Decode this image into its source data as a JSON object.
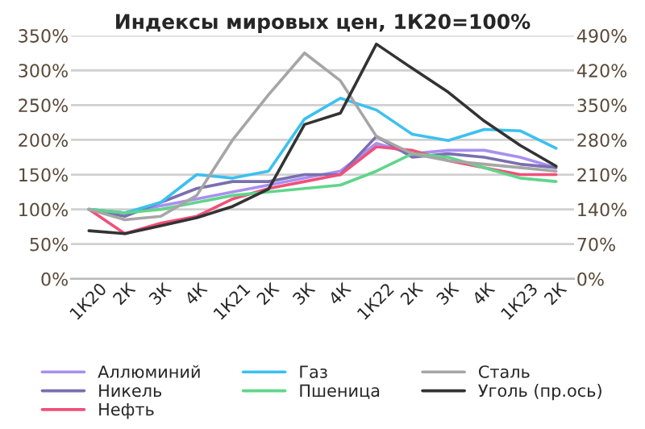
{
  "chart_data": {
    "type": "line",
    "title": "Индексы мировых цен, 1К20=100%",
    "categories": [
      "1К20",
      "2К",
      "3К",
      "4К",
      "1К21",
      "2К",
      "3К",
      "4К",
      "1К22",
      "2К",
      "3К",
      "4К",
      "1К23",
      "2К"
    ],
    "series": [
      {
        "name": "Аллюминий",
        "color": "#a98ff0",
        "values": [
          100,
          95,
          105,
          115,
          125,
          135,
          145,
          155,
          195,
          180,
          185,
          185,
          175,
          160
        ]
      },
      {
        "name": "Никель",
        "color": "#7a6fb0",
        "values": [
          100,
          90,
          110,
          130,
          140,
          140,
          150,
          150,
          205,
          175,
          180,
          175,
          165,
          160
        ]
      },
      {
        "name": "Нефть",
        "color": "#f0507a",
        "values": [
          100,
          65,
          80,
          90,
          115,
          130,
          140,
          150,
          190,
          185,
          170,
          160,
          150,
          150
        ]
      },
      {
        "name": "Газ",
        "color": "#3cc0f0",
        "values": [
          100,
          95,
          110,
          150,
          145,
          155,
          230,
          260,
          243,
          208,
          199,
          215,
          213,
          188
        ]
      },
      {
        "name": "Пшеница",
        "color": "#5fd68a",
        "values": [
          100,
          95,
          100,
          110,
          120,
          125,
          130,
          135,
          155,
          180,
          175,
          160,
          145,
          140
        ]
      },
      {
        "name": "Сталь",
        "color": "#a6a6a6",
        "values": [
          100,
          85,
          90,
          120,
          200,
          265,
          325,
          285,
          205,
          180,
          170,
          165,
          160,
          155
        ]
      },
      {
        "name": "Уголь (пр.ось)",
        "color": "#333333",
        "axis": "y2",
        "values": [
          97,
          91,
          107,
          123,
          146,
          181,
          311,
          334,
          473,
          424,
          376,
          318,
          269,
          227
        ]
      }
    ],
    "ylim": [
      0,
      350
    ],
    "yticks": [
      {
        "value": 0,
        "label": "0%"
      },
      {
        "value": 50,
        "label": "50%"
      },
      {
        "value": 100,
        "label": "100%"
      },
      {
        "value": 150,
        "label": "150%"
      },
      {
        "value": 200,
        "label": "200%"
      },
      {
        "value": 250,
        "label": "250%"
      },
      {
        "value": 300,
        "label": "300%"
      },
      {
        "value": 350,
        "label": "350%"
      }
    ],
    "y2lim": [
      0,
      490
    ],
    "y2ticks": [
      {
        "value": 0,
        "label": "0%"
      },
      {
        "value": 70,
        "label": "70%"
      },
      {
        "value": 140,
        "label": "140%"
      },
      {
        "value": 210,
        "label": "210%"
      },
      {
        "value": 280,
        "label": "280%"
      },
      {
        "value": 350,
        "label": "350%"
      },
      {
        "value": 420,
        "label": "420%"
      },
      {
        "value": 490,
        "label": "490%"
      }
    ],
    "grid": "y",
    "legend": "bottom",
    "marker": "none",
    "line_style": "solid"
  }
}
